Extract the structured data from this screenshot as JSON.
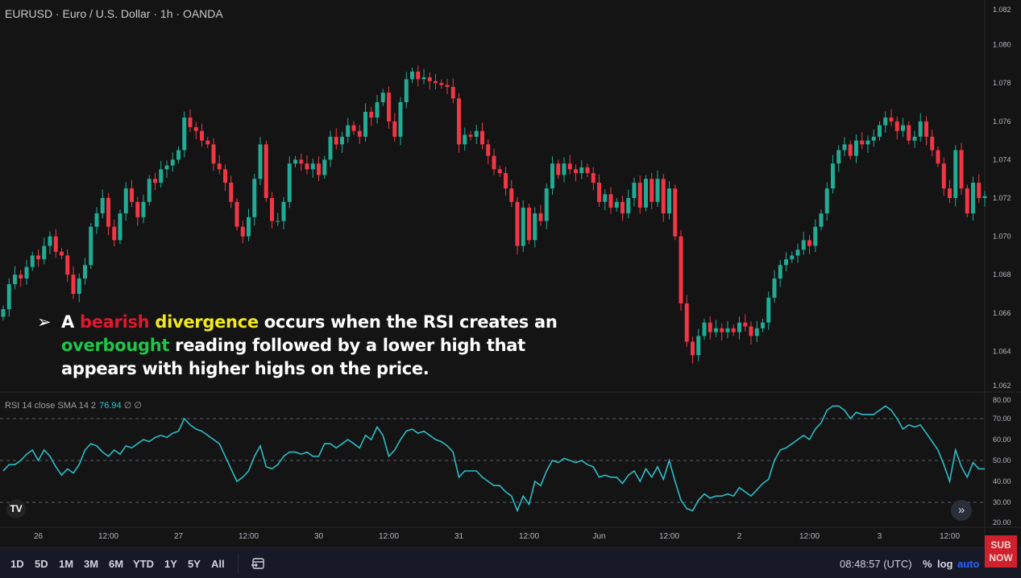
{
  "header": {
    "title": "EURUSD · Euro / U.S. Dollar · 1h · OANDA"
  },
  "rsi_legend": {
    "label": "RSI 14 close SMA 14 2",
    "value": "76.94",
    "extra": "∅ ∅"
  },
  "note": {
    "bullet": "➢",
    "line1": [
      {
        "t": "A ",
        "c": ""
      },
      {
        "t": "bearish",
        "c": "red"
      },
      {
        "t": " ",
        "c": ""
      },
      {
        "t": "divergence",
        "c": "yellow"
      },
      {
        "t": " occurs when the RSI creates an",
        "c": ""
      }
    ],
    "line2": [
      {
        "t": "overbought",
        "c": "green"
      },
      {
        "t": " reading followed by a lower high that",
        "c": ""
      }
    ],
    "line3": [
      {
        "t": "appears with higher highs on the price.",
        "c": ""
      }
    ]
  },
  "bottombar": {
    "ranges": [
      "1D",
      "5D",
      "1M",
      "3M",
      "6M",
      "YTD",
      "1Y",
      "5Y",
      "All"
    ],
    "clock": "08:48:57 (UTC)",
    "percent": "%",
    "log": "log",
    "auto": "auto"
  },
  "badge": {
    "line1": "SUB",
    "line2": "NOW"
  },
  "logo": "TV",
  "colors": {
    "up": "#22ab94",
    "down": "#f23645",
    "rsi": "#2bbcc6",
    "background": "#141414"
  },
  "chart_data": [
    {
      "type": "candlestick",
      "title": "EURUSD · Euro / U.S. Dollar · 1h · OANDA",
      "interval": "1h",
      "ylim": [
        1.062,
        1.082
      ],
      "y_ticks": [
        "1.082",
        "1.080",
        "1.078",
        "1.076",
        "1.074",
        "1.072",
        "1.070",
        "1.068",
        "1.066",
        "1.064",
        "1.062"
      ],
      "x_ticks": [
        {
          "i": 6,
          "label": "26"
        },
        {
          "i": 18,
          "label": "12:00"
        },
        {
          "i": 30,
          "label": "27"
        },
        {
          "i": 42,
          "label": "12:00"
        },
        {
          "i": 54,
          "label": "30"
        },
        {
          "i": 66,
          "label": "12:00"
        },
        {
          "i": 78,
          "label": "31"
        },
        {
          "i": 90,
          "label": "12:00"
        },
        {
          "i": 102,
          "label": "Jun"
        },
        {
          "i": 114,
          "label": "12:00"
        },
        {
          "i": 126,
          "label": "2"
        },
        {
          "i": 138,
          "label": "12:00"
        },
        {
          "i": 150,
          "label": "3"
        },
        {
          "i": 162,
          "label": "12:00"
        }
      ],
      "close": [
        1.0662,
        1.0675,
        1.068,
        1.0678,
        1.0684,
        1.069,
        1.0688,
        1.0695,
        1.07,
        1.0692,
        1.069,
        1.068,
        1.067,
        1.0678,
        1.0685,
        1.0705,
        1.0712,
        1.072,
        1.0705,
        1.0698,
        1.0712,
        1.0725,
        1.0718,
        1.071,
        1.0718,
        1.073,
        1.0728,
        1.0735,
        1.0737,
        1.074,
        1.0745,
        1.0762,
        1.0757,
        1.0755,
        1.075,
        1.0748,
        1.0738,
        1.0735,
        1.0728,
        1.0718,
        1.0705,
        1.07,
        1.071,
        1.073,
        1.0748,
        1.072,
        1.0708,
        1.0708,
        1.0718,
        1.0738,
        1.074,
        1.0738,
        1.0735,
        1.0738,
        1.0732,
        1.074,
        1.0752,
        1.0748,
        1.0752,
        1.0758,
        1.0755,
        1.0752,
        1.0765,
        1.0762,
        1.077,
        1.0775,
        1.076,
        1.0752,
        1.077,
        1.0782,
        1.0786,
        1.0782,
        1.0783,
        1.0781,
        1.078,
        1.0779,
        1.0778,
        1.0772,
        1.0748,
        1.0753,
        1.0752,
        1.0755,
        1.0748,
        1.0742,
        1.0735,
        1.0733,
        1.0725,
        1.0718,
        1.0695,
        1.0715,
        1.0698,
        1.0712,
        1.0708,
        1.0725,
        1.0738,
        1.0732,
        1.0738,
        1.0735,
        1.0733,
        1.0736,
        1.0733,
        1.0728,
        1.0718,
        1.0722,
        1.0715,
        1.0718,
        1.0712,
        1.072,
        1.0728,
        1.0715,
        1.073,
        1.0718,
        1.073,
        1.0712,
        1.0725,
        1.07,
        1.0665,
        1.0645,
        1.0638,
        1.0648,
        1.0655,
        1.065,
        1.0652,
        1.065,
        1.0652,
        1.065,
        1.0655,
        1.0653,
        1.0648,
        1.0652,
        1.0655,
        1.0668,
        1.0678,
        1.0685,
        1.0688,
        1.069,
        1.0693,
        1.0698,
        1.0695,
        1.0705,
        1.0712,
        1.0725,
        1.0738,
        1.0745,
        1.0748,
        1.0742,
        1.075,
        1.0748,
        1.075,
        1.0752,
        1.0758,
        1.0762,
        1.076,
        1.0755,
        1.0758,
        1.075,
        1.0752,
        1.076,
        1.0752,
        1.0745,
        1.0738,
        1.0725,
        1.072,
        1.0745,
        1.0725,
        1.0712,
        1.0728,
        1.072,
        1.0721
      ]
    },
    {
      "type": "line",
      "name": "RSI 14 close SMA 14 2",
      "ylim": [
        20,
        80
      ],
      "levels": [
        70,
        50,
        30
      ],
      "y_ticks": [
        "80.00",
        "70.00",
        "60.00",
        "50.00",
        "40.00",
        "30.00",
        "20.00"
      ],
      "values": [
        45,
        48,
        48,
        50,
        53,
        55,
        50,
        55,
        52,
        47,
        43,
        46,
        44,
        48,
        55,
        58,
        57,
        54,
        52,
        55,
        53,
        57,
        56,
        58,
        60,
        59,
        61,
        62,
        61,
        63,
        64,
        70,
        67,
        65,
        64,
        62,
        60,
        58,
        52,
        46,
        40,
        42,
        45,
        52,
        57,
        47,
        46,
        48,
        52,
        54,
        54,
        53,
        54,
        52,
        52,
        58,
        58,
        56,
        58,
        60,
        58,
        56,
        62,
        60,
        66,
        62,
        52,
        55,
        60,
        64,
        65,
        63,
        64,
        62,
        60,
        59,
        57,
        54,
        42,
        45,
        45,
        45,
        42,
        40,
        38,
        38,
        35,
        33,
        26,
        33,
        29,
        40,
        38,
        45,
        50,
        49,
        51,
        50,
        49,
        50,
        48,
        47,
        42,
        43,
        42,
        42,
        39,
        43,
        45,
        40,
        46,
        42,
        47,
        41,
        50,
        40,
        31,
        27,
        26,
        31,
        34,
        32,
        33,
        33,
        34,
        33,
        37,
        35,
        33,
        36,
        39,
        41,
        50,
        55,
        56,
        58,
        60,
        62,
        60,
        65,
        68,
        74,
        76,
        76,
        74,
        70,
        73,
        72,
        72,
        72,
        74,
        76,
        74,
        70,
        65,
        67,
        66,
        67,
        63,
        59,
        55,
        48,
        40,
        55,
        47,
        42,
        49,
        46,
        46
      ]
    }
  ]
}
